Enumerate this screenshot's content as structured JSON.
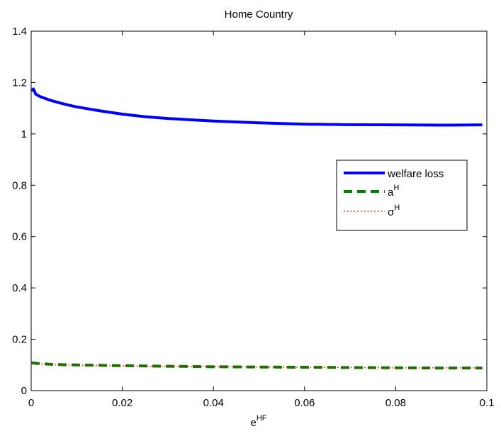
{
  "chart_data": {
    "type": "line",
    "title": "Home Country",
    "xlabel": {
      "base": "e",
      "sup": "HF"
    },
    "ylabel": "",
    "xlim": [
      0,
      0.1
    ],
    "ylim": [
      0,
      1.4
    ],
    "x_ticks": [
      0,
      0.02,
      0.04,
      0.06,
      0.08,
      0.1
    ],
    "x_tick_labels": [
      "0",
      "0.02",
      "0.04",
      "0.06",
      "0.08",
      "0.1"
    ],
    "y_ticks": [
      0,
      0.2,
      0.4,
      0.6,
      0.8,
      1,
      1.2,
      1.4
    ],
    "y_tick_labels": [
      "0",
      "0.2",
      "0.4",
      "0.6",
      "0.8",
      "1",
      "1.2",
      "1.4"
    ],
    "grid": false,
    "legend_position": "right",
    "series": [
      {
        "name": "welfare loss",
        "legend_base": "welfare loss",
        "legend_sup": "",
        "color": "#0000ff",
        "style": "solid",
        "x": [
          0,
          0.0005,
          0.001,
          0.002,
          0.004,
          0.006,
          0.008,
          0.01,
          0.015,
          0.02,
          0.025,
          0.03,
          0.04,
          0.05,
          0.06,
          0.07,
          0.08,
          0.09,
          0.099
        ],
        "y": [
          1.168,
          1.175,
          1.155,
          1.145,
          1.132,
          1.122,
          1.113,
          1.105,
          1.09,
          1.077,
          1.067,
          1.06,
          1.05,
          1.043,
          1.038,
          1.036,
          1.035,
          1.034,
          1.035
        ]
      },
      {
        "name": "aH",
        "legend_base": "a",
        "legend_sup": "H",
        "color": "#008000",
        "style": "dashed",
        "x": [
          0,
          0.002,
          0.005,
          0.01,
          0.02,
          0.03,
          0.04,
          0.05,
          0.06,
          0.07,
          0.08,
          0.09,
          0.099
        ],
        "y": [
          0.108,
          0.105,
          0.102,
          0.1,
          0.097,
          0.095,
          0.093,
          0.092,
          0.091,
          0.09,
          0.089,
          0.088,
          0.088
        ]
      },
      {
        "name": "σH",
        "legend_base": "σ",
        "legend_sup": "H",
        "color": "#ff0000",
        "style": "dotted",
        "x": [
          0,
          0.002,
          0.005,
          0.01,
          0.02,
          0.03,
          0.04,
          0.05,
          0.06,
          0.07,
          0.08,
          0.09,
          0.099
        ],
        "y": [
          0.106,
          0.104,
          0.101,
          0.099,
          0.096,
          0.094,
          0.093,
          0.092,
          0.091,
          0.09,
          0.089,
          0.089,
          0.089
        ]
      }
    ]
  }
}
